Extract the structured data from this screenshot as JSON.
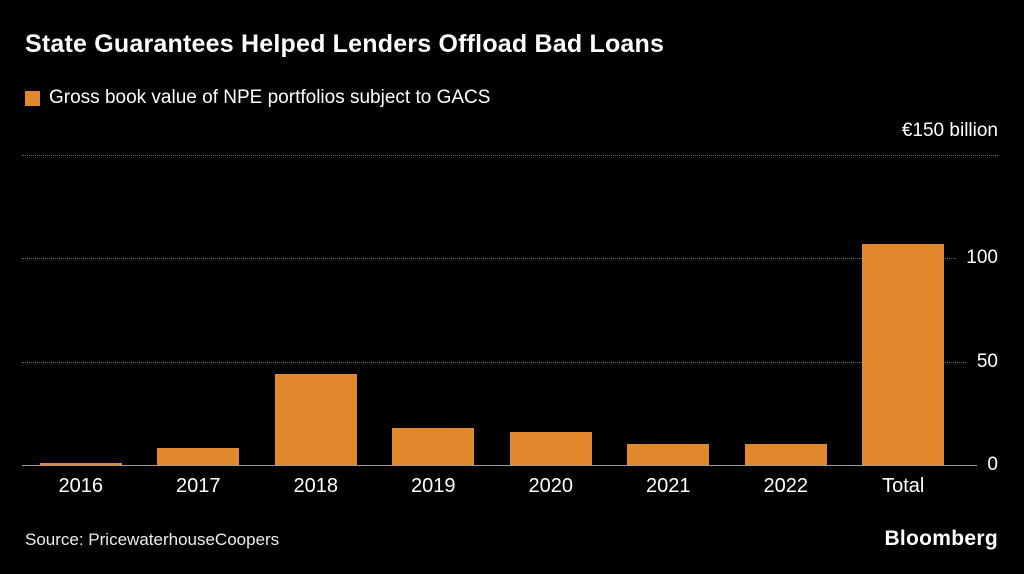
{
  "header": {
    "title": "State Guarantees Helped Lenders Offload Bad Loans",
    "legend_label": "Gross book value of NPE portfolios subject to GACS"
  },
  "colors": {
    "background": "#000000",
    "bar": "#E1872C",
    "grid": "#666666",
    "baseline": "#9a9a9a",
    "text": "#ffffff"
  },
  "chart_data": {
    "type": "bar",
    "categories": [
      "2016",
      "2017",
      "2018",
      "2019",
      "2020",
      "2021",
      "2022",
      "Total"
    ],
    "values": [
      1,
      8,
      44,
      18,
      16,
      10,
      10,
      107
    ],
    "title": "State Guarantees Helped Lenders Offload Bad Loans",
    "legend": [
      "Gross book value of NPE portfolios subject to GACS"
    ],
    "xlabel": "",
    "ylabel": "€150 billion",
    "ylim": [
      0,
      150
    ],
    "yticks": [
      {
        "value": 150,
        "label": "€150 billion",
        "label_position": "above"
      },
      {
        "value": 100,
        "label": "100",
        "label_position": "on-line"
      },
      {
        "value": 50,
        "label": "50",
        "label_position": "on-line"
      },
      {
        "value": 0,
        "label": "0",
        "label_position": "on-line"
      }
    ],
    "grid": "horizontal-dotted",
    "legend_position": "top-left",
    "bar_color": "#E1872C"
  },
  "footer": {
    "source": "Source: PricewaterhouseCoopers",
    "brand": "Bloomberg"
  }
}
